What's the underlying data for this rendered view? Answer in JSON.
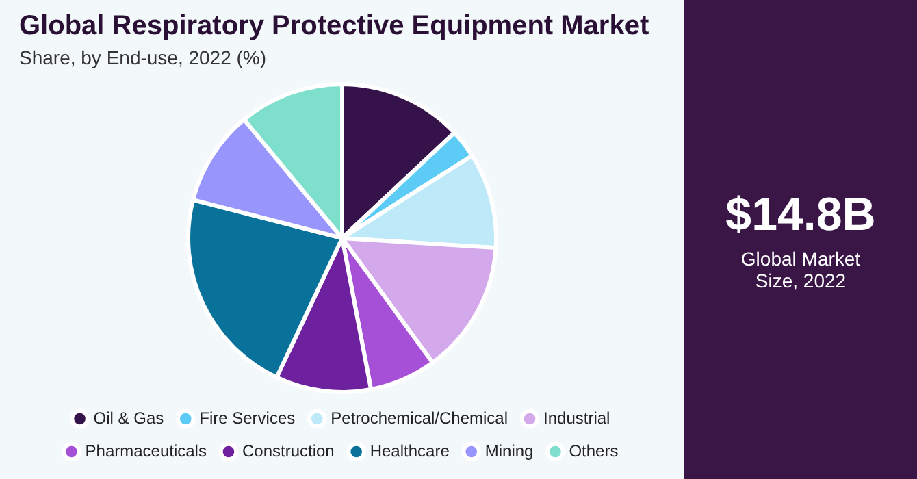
{
  "chart_data": {
    "type": "pie",
    "title": "Global Respiratory Protective Equipment Market",
    "subtitle": "Share, by End-use, 2022 (%)",
    "categories": [
      "Oil & Gas",
      "Fire Services",
      "Petrochemical/Chemical",
      "Industrial",
      "Pharmaceuticals",
      "Construction",
      "Healthcare",
      "Mining",
      "Others"
    ],
    "values": [
      13,
      3,
      10,
      14,
      7,
      10,
      22,
      10,
      11
    ],
    "colors": [
      "#36124a",
      "#5ccbf5",
      "#bde9f8",
      "#d4a9ec",
      "#a550d6",
      "#6e219e",
      "#08729a",
      "#9896fc",
      "#7edfcc"
    ],
    "legend": "bottom",
    "annotations": [
      "$14.8B",
      "Global Market Size, 2022"
    ]
  }
}
